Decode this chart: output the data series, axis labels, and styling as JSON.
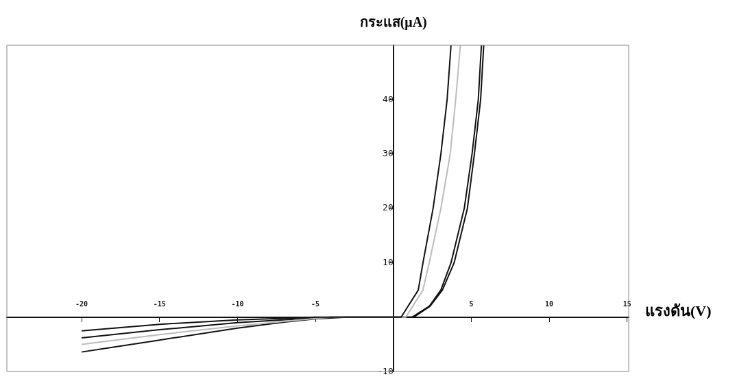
{
  "chart_data": {
    "type": "line",
    "xlabel": "แรงดัน(V)",
    "ylabel": "กระแส(μA)",
    "xlim": [
      -24.8,
      15.1
    ],
    "ylim": [
      -10,
      50
    ],
    "xticks": [
      -20,
      -15,
      -10,
      -5,
      5,
      10,
      15
    ],
    "yticks": [
      -10,
      10,
      20,
      30,
      40
    ],
    "grid": false,
    "legend": false,
    "marker": "none",
    "line_style": "solid",
    "series": [
      {
        "color": "#111111",
        "x": [
          -20,
          -15,
          -10,
          -7,
          -5,
          0,
          0.5,
          1.6,
          1.9,
          2.55,
          3.05,
          3.45,
          3.7
        ],
        "values": [
          -2.5,
          -1.3,
          -0.5,
          -0.2,
          0,
          0,
          0,
          5,
          10,
          20,
          30,
          40,
          50
        ]
      },
      {
        "color": "#bbbbbb",
        "x": [
          -20,
          -15,
          -10,
          -6,
          -4,
          0,
          0.8,
          1.9,
          2.3,
          3.05,
          3.65,
          4.0,
          4.3
        ],
        "values": [
          -5.0,
          -3.2,
          -1.6,
          -0.5,
          0,
          0,
          0,
          5,
          10,
          20,
          30,
          40,
          50
        ]
      },
      {
        "color": "#111111",
        "x": [
          -20,
          -15,
          -10,
          -6,
          -4,
          0,
          1.2,
          2.3,
          3.05,
          3.7,
          4.55,
          5.05,
          5.45,
          5.65
        ],
        "values": [
          -3.8,
          -2.3,
          -1.0,
          -0.3,
          0,
          0,
          0,
          2,
          5,
          10,
          20,
          30,
          40,
          50
        ]
      },
      {
        "color": "#111111",
        "x": [
          -20,
          -15,
          -10,
          -7,
          -5,
          -3,
          0,
          1.3,
          2.35,
          3.15,
          3.9,
          4.75,
          5.2,
          5.6,
          5.8
        ],
        "values": [
          -6.4,
          -4.2,
          -2.0,
          -0.9,
          -0.3,
          0,
          0,
          0,
          2,
          5,
          10,
          20,
          30,
          40,
          50
        ]
      }
    ]
  }
}
